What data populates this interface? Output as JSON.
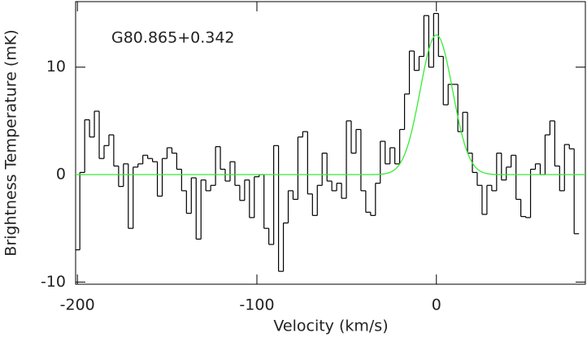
{
  "chart_data": {
    "type": "step",
    "title": "G80.865+0.342",
    "x_label": "Velocity (km/s)",
    "y_label": "Brightness Temperature (mK)",
    "xlim": [
      -201,
      83
    ],
    "xticks": [
      -200,
      -100,
      0
    ],
    "ylim": [
      -10.2,
      16.1
    ],
    "yticks": [
      -10,
      0,
      10
    ],
    "color": "#000000",
    "x": [
      -200,
      -197.3,
      -194.6,
      -191.9,
      -189.2,
      -186.5,
      -183.8,
      -181.1,
      -178.4,
      -175.7,
      -173,
      -170.3,
      -167.6,
      -164.9,
      -162.2,
      -159.5,
      -156.8,
      -154.1,
      -151.4,
      -148.7,
      -146,
      -143.3,
      -140.6,
      -137.9,
      -135.2,
      -132.5,
      -129.8,
      -127.1,
      -124.4,
      -121.7,
      -119,
      -116.3,
      -113.6,
      -110.9,
      -108.2,
      -105.5,
      -102.8,
      -100.1,
      -97.4,
      -94.7,
      -92,
      -89.3,
      -86.6,
      -83.9,
      -81.2,
      -78.5,
      -75.8,
      -73.1,
      -70.4,
      -67.7,
      -65,
      -62.3,
      -59.6,
      -56.9,
      -54.2,
      -51.5,
      -48.8,
      -46.1,
      -43.4,
      -40.7,
      -38,
      -35.3,
      -32.6,
      -29.9,
      -27.2,
      -24.5,
      -21.8,
      -19.1,
      -16.4,
      -13.7,
      -11,
      -8.3,
      -5.6,
      -2.9,
      -0.2,
      2.5,
      5.2,
      7.9,
      10.6,
      13.3,
      16,
      18.7,
      21.4,
      24.1,
      26.8,
      29.5,
      32.2,
      34.9,
      37.6,
      40.3,
      43,
      45.7,
      48.4,
      51.1,
      53.8,
      56.5,
      59.2,
      61.9,
      64.6,
      67.3,
      70,
      72.7,
      75.4,
      78.1
    ],
    "values": [
      -7,
      0.2,
      5.1,
      3.5,
      5.9,
      1.5,
      2.7,
      3.7,
      0.8,
      -1.1,
      1,
      -5,
      0.7,
      1,
      1.8,
      1.5,
      1.2,
      -2,
      1.5,
      2.5,
      2,
      0.5,
      -1.5,
      -3.6,
      -0.3,
      -6,
      -0.5,
      -1.5,
      -1,
      2.6,
      0.5,
      -0.6,
      1.2,
      -1,
      -2.4,
      -0.5,
      -4,
      -0.2,
      0,
      -5,
      -6.5,
      2.7,
      -9,
      -4.5,
      -1.5,
      -2.3,
      3.5,
      4,
      -1.8,
      -3.8,
      -1,
      2,
      -0.6,
      -1.5,
      -0.8,
      -2.2,
      5,
      2,
      4.2,
      -1.5,
      -3.5,
      -3.8,
      -0.8,
      3.1,
      1,
      2.5,
      1,
      4.2,
      7.5,
      11.5,
      9.7,
      11,
      14.8,
      10,
      15,
      11,
      6.5,
      8.4,
      8.4,
      4,
      5.8,
      2,
      0.2,
      -1,
      -3.7,
      -1,
      -1.5,
      2,
      -0.5,
      0.7,
      1.8,
      -2.3,
      -3.9,
      -4,
      0.5,
      1,
      0,
      3.7,
      5,
      0.8,
      -1.5,
      2.8,
      2.4,
      -5.5
    ],
    "fit": {
      "amplitude": 13,
      "center": 0,
      "sigma": 9,
      "color": "#33ee33"
    }
  }
}
